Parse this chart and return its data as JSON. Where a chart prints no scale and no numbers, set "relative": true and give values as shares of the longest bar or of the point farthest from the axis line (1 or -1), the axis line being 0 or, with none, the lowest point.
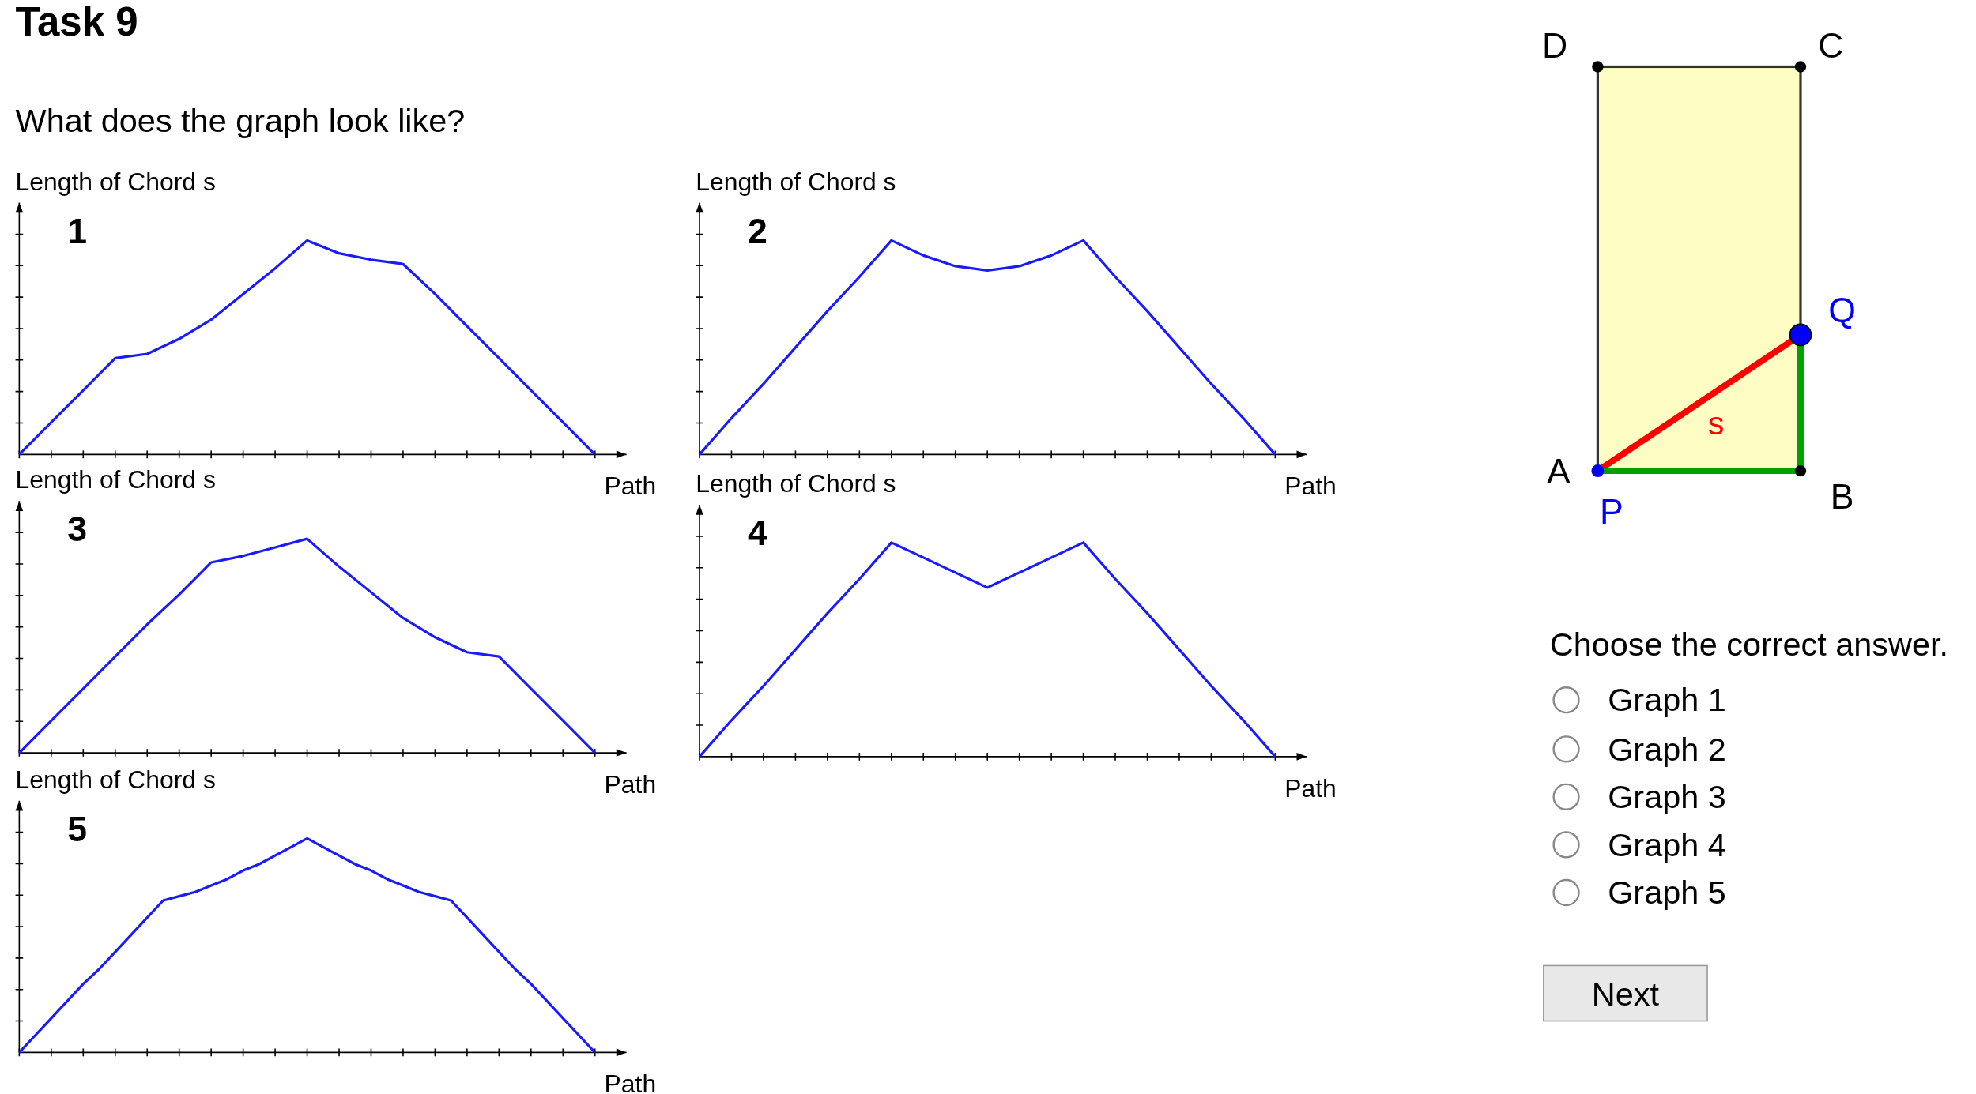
{
  "chart_data": [
    {
      "type": "other",
      "title": "Task 9",
      "subtitle": "What does the graph look like?",
      "annotations": [
        "D",
        "C",
        "Q",
        "s",
        "A",
        "P",
        "B",
        "Choose the correct answer.",
        "Graph 1",
        "Graph 2",
        "Graph 3",
        "Graph 4",
        "Graph 5",
        "Next"
      ]
    },
    {
      "type": "line",
      "title": "1",
      "ylabel": "Length of Chord s",
      "xlabel": "Path",
      "relative": true,
      "categories": [
        null,
        null,
        null,
        null,
        null,
        null,
        null,
        null,
        null,
        null,
        null,
        null,
        null,
        null,
        null,
        null,
        null,
        null,
        null
      ],
      "series": [
        {
          "color": "#1a1aff",
          "values": [
            0,
            0.15,
            0.3,
            0.45,
            0.47,
            0.54,
            0.63,
            0.75,
            0.87,
            1,
            0.94,
            0.91,
            0.89,
            0.75,
            0.6,
            0.45,
            0.3,
            0.15,
            0
          ]
        }
      ]
    },
    {
      "type": "line",
      "title": "2",
      "ylabel": "Length of Chord s",
      "xlabel": "Path",
      "relative": true,
      "categories": [
        null,
        null,
        null,
        null,
        null,
        null,
        null,
        null,
        null,
        null,
        null,
        null,
        null,
        null,
        null,
        null,
        null,
        null,
        null
      ],
      "series": [
        {
          "color": "#1a1aff",
          "values": [
            0,
            0.17,
            0.33,
            0.5,
            0.67,
            0.83,
            1,
            0.93,
            0.88,
            0.86,
            0.88,
            0.93,
            1,
            0.83,
            0.67,
            0.5,
            0.33,
            0.17,
            0
          ]
        }
      ]
    },
    {
      "type": "line",
      "title": "3",
      "ylabel": "Length of Chord s",
      "xlabel": "Path",
      "relative": true,
      "categories": [
        null,
        null,
        null,
        null,
        null,
        null,
        null,
        null,
        null,
        null,
        null,
        null,
        null,
        null,
        null,
        null,
        null,
        null,
        null
      ],
      "series": [
        {
          "color": "#1a1aff",
          "values": [
            0,
            0.15,
            0.3,
            0.45,
            0.6,
            0.74,
            0.89,
            0.92,
            0.96,
            1,
            0.87,
            0.75,
            0.63,
            0.54,
            0.47,
            0.45,
            0.3,
            0.15,
            0
          ]
        }
      ]
    },
    {
      "type": "line",
      "title": "4",
      "ylabel": "Length of Chord s",
      "xlabel": "Path",
      "relative": true,
      "categories": [
        null,
        null,
        null,
        null,
        null,
        null,
        null,
        null,
        null,
        null,
        null,
        null,
        null,
        null,
        null,
        null,
        null,
        null,
        null
      ],
      "series": [
        {
          "color": "#1a1aff",
          "values": [
            0,
            0.17,
            0.33,
            0.5,
            0.67,
            0.83,
            1,
            0.93,
            0.86,
            0.79,
            0.86,
            0.93,
            1,
            0.83,
            0.67,
            0.5,
            0.33,
            0.17,
            0
          ]
        }
      ]
    },
    {
      "type": "line",
      "title": "5",
      "ylabel": "Length of Chord s",
      "xlabel": "Path",
      "relative": true,
      "categories": [
        null,
        null,
        null,
        null,
        null,
        null,
        null,
        null,
        null,
        null,
        null,
        null,
        null,
        null,
        null,
        null,
        null,
        null,
        null,
        null,
        null,
        null,
        null,
        null,
        null,
        null,
        null,
        null,
        null,
        null,
        null,
        null,
        null,
        null,
        null,
        null,
        null
      ],
      "series": [
        {
          "color": "#1a1aff",
          "values": [
            0,
            0.08,
            0.16,
            0.24,
            0.32,
            0.39,
            0.47,
            0.55,
            0.63,
            0.71,
            0.73,
            0.75,
            0.78,
            0.81,
            0.85,
            0.88,
            0.92,
            0.96,
            1,
            0.96,
            0.92,
            0.88,
            0.85,
            0.81,
            0.78,
            0.75,
            0.73,
            0.71,
            0.63,
            0.55,
            0.47,
            0.39,
            0.32,
            0.24,
            0.16,
            0.08,
            0
          ]
        }
      ]
    }
  ]
}
